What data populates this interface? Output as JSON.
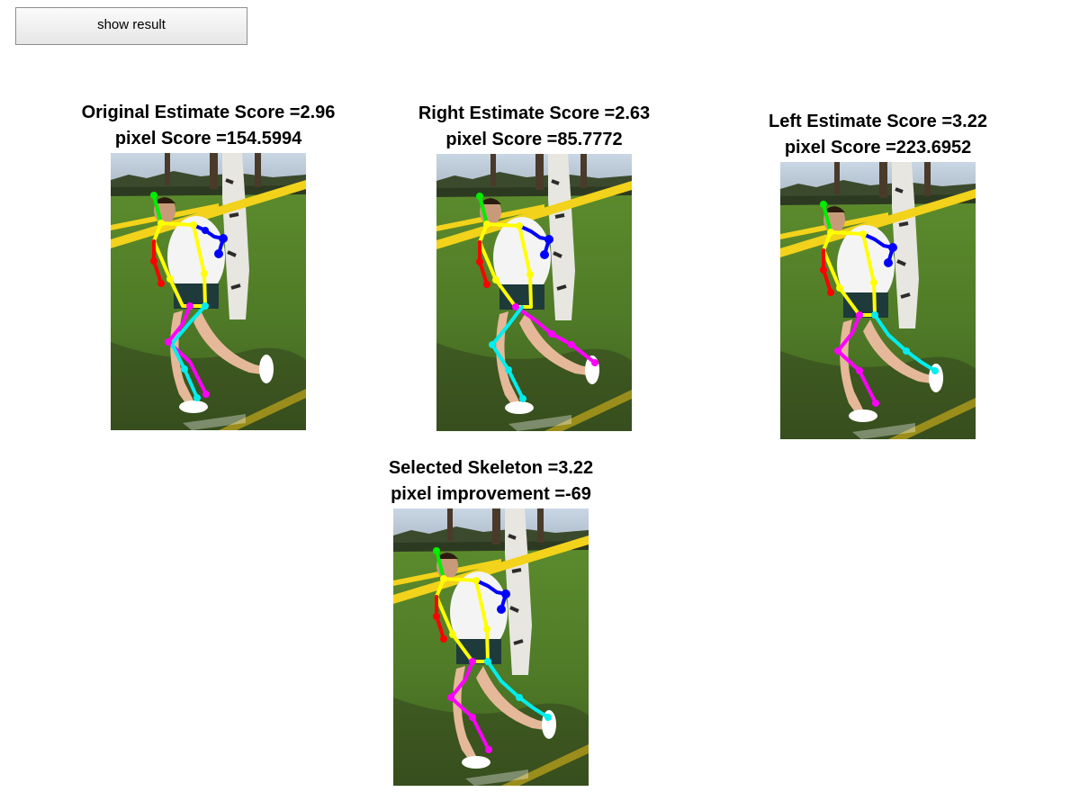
{
  "toolbar": {
    "show_result_label": "show result"
  },
  "panels": [
    {
      "title_line1": "Original Estimate Score =2.96",
      "title_line2": "pixel Score =154.5994"
    },
    {
      "title_line1": "Right Estimate Score =2.63",
      "title_line2": "pixel Score =85.7772"
    },
    {
      "title_line1": "Left Estimate Score =3.22",
      "title_line2": "pixel Score =223.6952"
    },
    {
      "title_line1": "Selected Skeleton =3.22",
      "title_line2": "pixel improvement =-69"
    }
  ],
  "colors": {
    "head": "#00ee00",
    "torso": "#ffff00",
    "right_arm": "#0000ff",
    "left_arm": "#ff0000",
    "leg_a": "#ff00ff",
    "leg_b": "#00eeee"
  }
}
